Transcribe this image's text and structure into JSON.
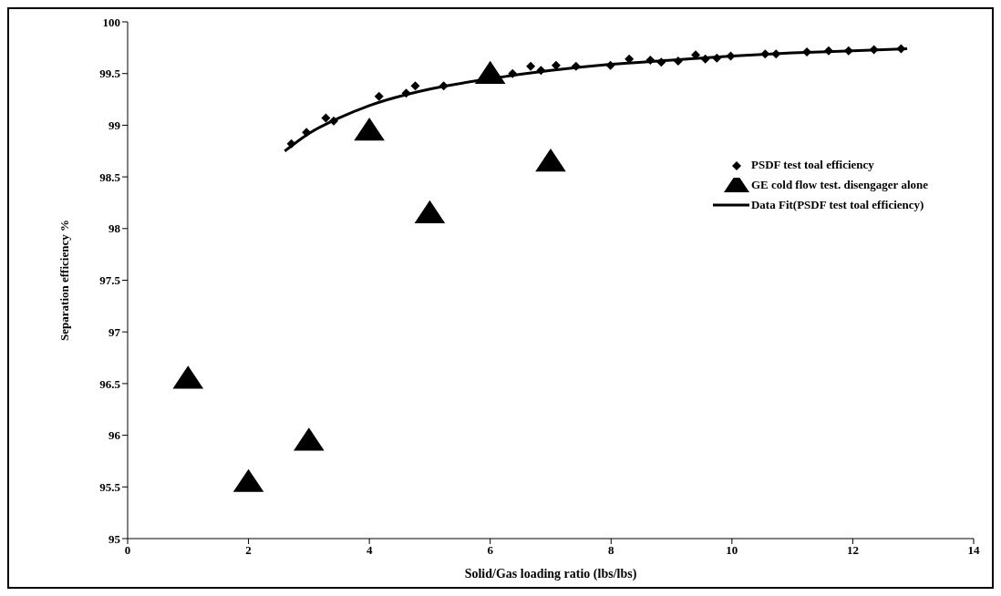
{
  "chart_data": {
    "type": "scatter",
    "xlabel": "Solid/Gas loading ratio (lbs/lbs)",
    "ylabel": "Separation efficiency %",
    "xlim": [
      0,
      14
    ],
    "xticks": [
      0,
      2,
      4,
      6,
      8,
      10,
      12,
      14
    ],
    "ylim": [
      95,
      100
    ],
    "yticks": [
      95,
      95.5,
      96,
      96.5,
      97,
      97.5,
      98,
      98.5,
      99,
      99.5,
      100
    ],
    "grid": false,
    "legend": "right",
    "series": [
      {
        "name": "PSDF test toal efficiency",
        "marker": "diamond",
        "color": "#000000",
        "x": [
          2.71,
          2.96,
          3.28,
          3.41,
          4.16,
          4.61,
          4.76,
          5.23,
          6.37,
          6.67,
          6.84,
          7.09,
          7.42,
          7.99,
          8.3,
          8.65,
          8.83,
          9.11,
          9.4,
          9.56,
          9.75,
          9.98,
          10.55,
          10.73,
          11.24,
          11.6,
          11.93,
          12.35,
          12.8
        ],
        "values": [
          98.82,
          98.93,
          99.07,
          99.04,
          99.28,
          99.31,
          99.38,
          99.38,
          99.5,
          99.57,
          99.53,
          99.58,
          99.57,
          99.58,
          99.64,
          99.63,
          99.61,
          99.62,
          99.68,
          99.64,
          99.65,
          99.67,
          99.69,
          99.69,
          99.71,
          99.72,
          99.72,
          99.73,
          99.74
        ]
      },
      {
        "name": "GE cold flow test. disengager alone",
        "marker": "triangle",
        "color": "#000000",
        "x": [
          1,
          2,
          3,
          4,
          5,
          6,
          7
        ],
        "values": [
          96.55,
          95.55,
          95.95,
          98.95,
          98.15,
          99.5,
          98.65
        ]
      },
      {
        "name": "Data Fit(PSDF test toal efficiency)",
        "type": "line",
        "marker": "none",
        "line_style": "solid",
        "color": "#000000",
        "x": [
          2.6,
          3,
          3.5,
          4,
          5,
          6,
          7,
          8,
          9,
          10,
          11,
          12,
          12.9
        ],
        "values": [
          98.75,
          98.92,
          99.07,
          99.19,
          99.35,
          99.45,
          99.53,
          99.59,
          99.63,
          99.67,
          99.7,
          99.72,
          99.74
        ]
      }
    ]
  }
}
